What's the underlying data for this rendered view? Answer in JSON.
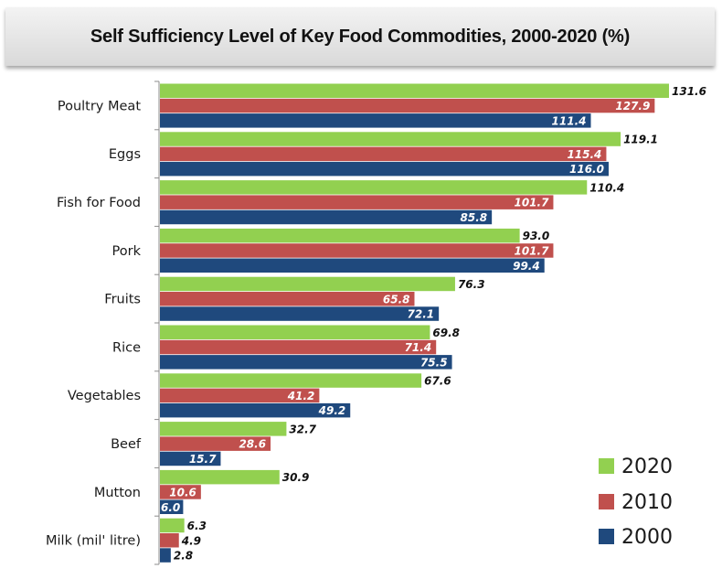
{
  "chart_data": {
    "type": "bar",
    "orientation": "horizontal",
    "title": "Self Sufficiency Level of Key Food Commodities, 2000-2020 (%)",
    "xlabel": "",
    "ylabel": "",
    "xlim": [
      0,
      131.6
    ],
    "grid": false,
    "legend_position": "bottom-right",
    "categories": [
      "Poultry Meat",
      "Eggs",
      "Fish for Food",
      "Pork",
      "Fruits",
      "Rice",
      "Vegetables",
      "Beef",
      "Mutton",
      "Milk (mil' litre)"
    ],
    "series": [
      {
        "name": "2020",
        "color": "#92d050",
        "label_color": "#111111",
        "values": [
          131.6,
          119.1,
          110.4,
          93.0,
          76.3,
          69.8,
          67.6,
          32.7,
          30.9,
          6.3
        ]
      },
      {
        "name": "2010",
        "color": "#c0504d",
        "label_color": "#ffffff",
        "values": [
          127.9,
          115.4,
          101.7,
          101.7,
          65.8,
          71.4,
          41.2,
          28.6,
          10.6,
          4.9
        ]
      },
      {
        "name": "2000",
        "color": "#1f497d",
        "label_color": "#ffffff",
        "values": [
          111.4,
          116.0,
          85.8,
          99.4,
          72.1,
          75.5,
          49.2,
          15.7,
          6.0,
          2.8
        ]
      }
    ],
    "value_labels": [
      [
        "131.6",
        "127.9",
        "111.4"
      ],
      [
        "119.1",
        "115.4",
        "116.0"
      ],
      [
        "110.4",
        "101.7",
        "85.8"
      ],
      [
        "93.0",
        "101.7",
        "99.4"
      ],
      [
        "76.3",
        "65.8",
        "72.1"
      ],
      [
        "69.8",
        "71.4",
        "75.5"
      ],
      [
        "67.6",
        "41.2",
        "49.2"
      ],
      [
        "32.7",
        "28.6",
        "15.7"
      ],
      [
        "30.9",
        "10.6",
        "6.0"
      ],
      [
        "6.3",
        "4.9",
        "2.8"
      ]
    ]
  }
}
